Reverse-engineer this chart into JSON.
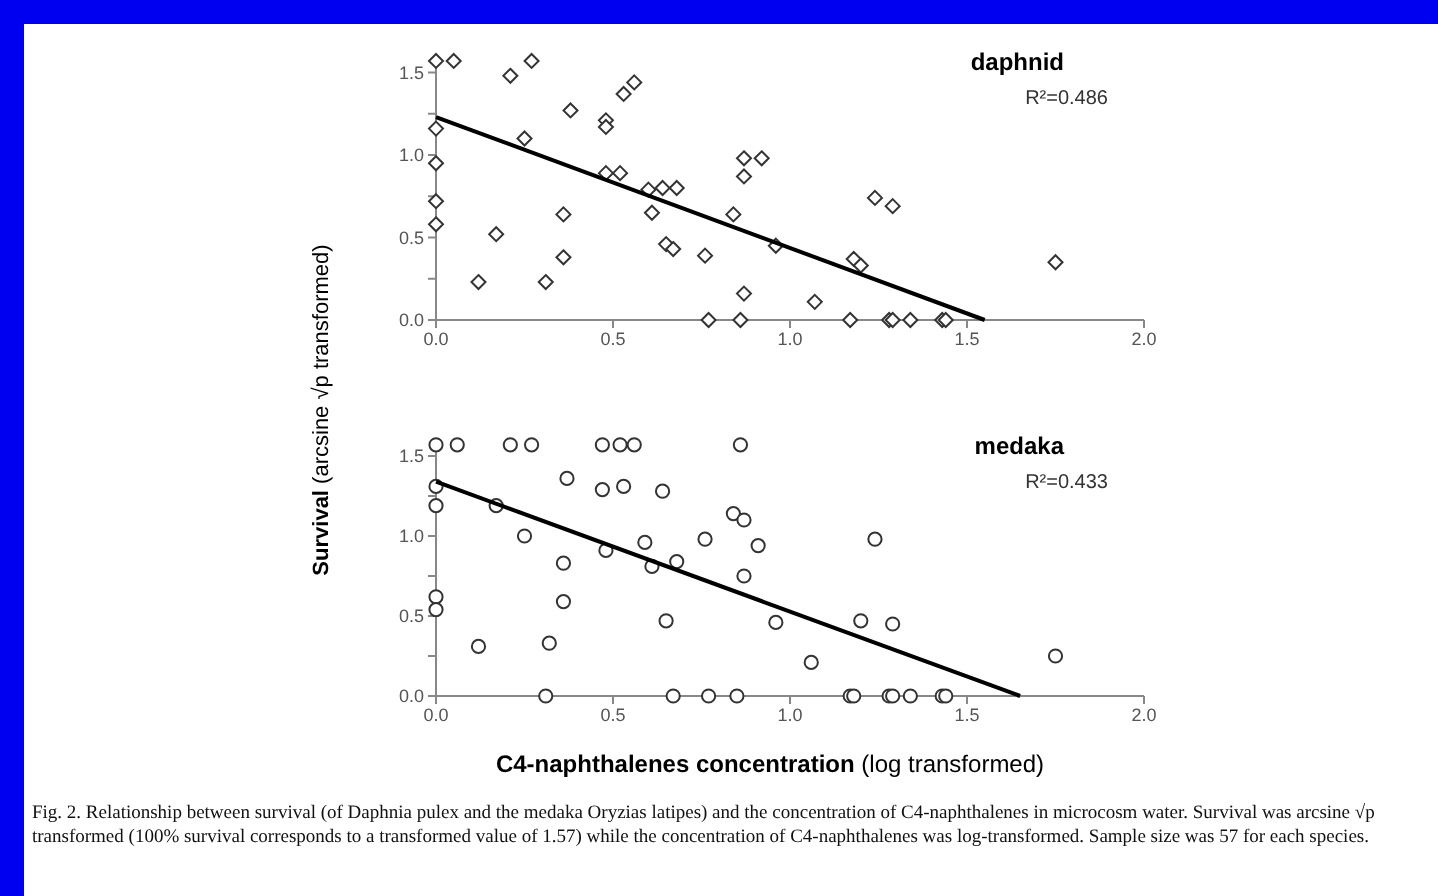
{
  "chart_data": [
    {
      "type": "scatter",
      "title": "daphnid",
      "ylabel": "Survival (arcsine √p transformed)",
      "annotations": [
        "R²=0.486"
      ],
      "marker": "diamond",
      "xlim": [
        0,
        2
      ],
      "xticks": [
        {
          "value": 0,
          "label": "0.0"
        },
        {
          "value": 0.5,
          "label": "0.5"
        },
        {
          "value": 1,
          "label": "1.0"
        },
        {
          "value": 1.5,
          "label": "1.5"
        },
        {
          "value": 2,
          "label": "2.0"
        }
      ],
      "ylim": [
        0,
        1.6
      ],
      "yticks": [
        {
          "value": 0,
          "label": "0.0"
        },
        {
          "value": 0.25,
          "label": null
        },
        {
          "value": 0.5,
          "label": "0.5"
        },
        {
          "value": 0.75,
          "label": null
        },
        {
          "value": 1,
          "label": "1.0"
        },
        {
          "value": 1.25,
          "label": null
        },
        {
          "value": 1.5,
          "label": "1.5"
        }
      ],
      "series": [
        {
          "color": "#333333",
          "x": [
            0,
            0.05,
            0.27,
            0.21,
            0,
            0,
            0,
            0,
            0.12,
            0.17,
            0.25,
            0.31,
            0.36,
            0.36,
            0.38,
            0.48,
            0.48,
            0.48,
            0.52,
            0.53,
            0.56,
            0.6,
            0.61,
            0.64,
            0.68,
            0.65,
            0.67,
            0.76,
            0.77,
            0.84,
            0.86,
            0.87,
            0.87,
            0.92,
            0.87,
            0.96,
            1.07,
            1.17,
            1.18,
            1.2,
            1.24,
            1.29,
            1.28,
            1.29,
            1.34,
            1.43,
            1.44,
            1.75
          ],
          "values": [
            1.57,
            1.57,
            1.57,
            1.48,
            1.16,
            0.95,
            0.72,
            0.58,
            0.23,
            0.52,
            1.1,
            0.23,
            0.64,
            0.38,
            1.27,
            1.21,
            1.17,
            0.89,
            0.89,
            1.37,
            1.44,
            0.79,
            0.65,
            0.8,
            0.8,
            0.46,
            0.43,
            0.39,
            0,
            0.64,
            0,
            0.87,
            0.98,
            0.98,
            0.16,
            0.45,
            0.11,
            0,
            0.37,
            0.33,
            0.74,
            0.69,
            0,
            0,
            0,
            0,
            0,
            0.35
          ]
        },
        {
          "type": "line",
          "color": "#000000",
          "marker": "none",
          "x": [
            0,
            1.55
          ],
          "values": [
            1.23,
            0
          ]
        }
      ]
    },
    {
      "type": "scatter",
      "title": "medaka",
      "xlabel": "C4-naphthalenes concentration (log transformed)",
      "annotations": [
        "R²=0.433",
        "Fig. 2. Relationship between survival (of Daphnia pulex and the medaka Oryzias latipes) and the concentration of C4-naphthalenes in microcosm water. Survival was arcsine √p transformed (100% survival corresponds to a transformed value of 1.57) while the concentration of C4-naphthalenes was log-transformed. Sample size was 57 for each species."
      ],
      "marker": "circle",
      "xlim": [
        0,
        2
      ],
      "xticks": [
        {
          "value": 0,
          "label": "0.0"
        },
        {
          "value": 0.5,
          "label": "0.5"
        },
        {
          "value": 1,
          "label": "1.0"
        },
        {
          "value": 1.5,
          "label": "1.5"
        },
        {
          "value": 2,
          "label": "2.0"
        }
      ],
      "ylim": [
        0,
        1.6
      ],
      "yticks": [
        {
          "value": 0,
          "label": "0.0"
        },
        {
          "value": 0.25,
          "label": null
        },
        {
          "value": 0.5,
          "label": "0.5"
        },
        {
          "value": 0.75,
          "label": null
        },
        {
          "value": 1,
          "label": "1.0"
        },
        {
          "value": 1.25,
          "label": null
        },
        {
          "value": 1.5,
          "label": "1.5"
        }
      ],
      "series": [
        {
          "color": "#333333",
          "x": [
            0,
            0.06,
            0.21,
            0.27,
            0.47,
            0.52,
            0.56,
            0.86,
            0,
            0,
            0,
            0,
            0.12,
            0.17,
            0.25,
            0.32,
            0.31,
            0.36,
            0.36,
            0.37,
            0.47,
            0.53,
            0.48,
            0.59,
            0.61,
            0.64,
            0.68,
            0.65,
            0.67,
            0.76,
            0.77,
            0.84,
            0.87,
            0.87,
            0.85,
            0.91,
            0.96,
            1.06,
            1.17,
            1.18,
            1.2,
            1.24,
            1.29,
            1.28,
            1.29,
            1.34,
            1.43,
            1.44,
            1.75
          ],
          "values": [
            1.57,
            1.57,
            1.57,
            1.57,
            1.57,
            1.57,
            1.57,
            1.57,
            1.31,
            1.19,
            0.62,
            0.54,
            0.31,
            1.19,
            1,
            0.33,
            0,
            0.83,
            0.59,
            1.36,
            1.29,
            1.31,
            0.91,
            0.96,
            0.81,
            1.28,
            0.84,
            0.47,
            0,
            0.98,
            0,
            1.14,
            1.1,
            0.75,
            0,
            0.94,
            0.46,
            0.21,
            0,
            0,
            0.47,
            0.98,
            0.45,
            0,
            0,
            0,
            0,
            0,
            0.25
          ]
        },
        {
          "type": "line",
          "color": "#000000",
          "marker": "none",
          "x": [
            0,
            1.65
          ],
          "values": [
            1.34,
            0
          ]
        }
      ]
    }
  ]
}
